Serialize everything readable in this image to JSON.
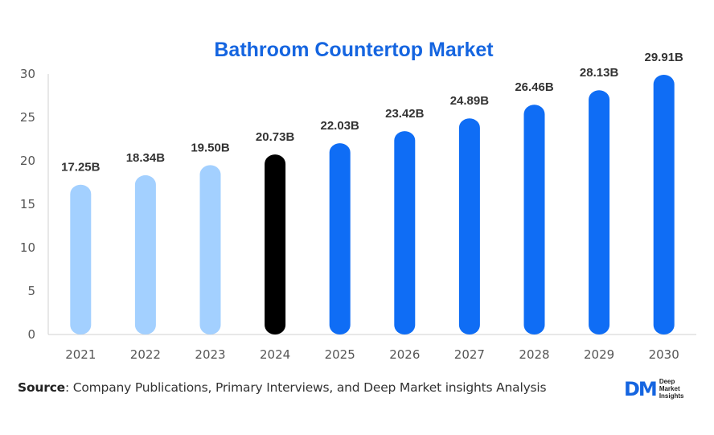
{
  "chart_data": {
    "type": "bar",
    "title": "Bathroom Countertop Market",
    "categories": [
      "2021",
      "2022",
      "2023",
      "2024",
      "2025",
      "2026",
      "2027",
      "2028",
      "2029",
      "2030"
    ],
    "values": [
      17.25,
      18.34,
      19.5,
      20.73,
      22.03,
      23.42,
      24.89,
      26.46,
      28.13,
      29.91
    ],
    "data_labels": [
      "17.25B",
      "18.34B",
      "19.50B",
      "20.73B",
      "22.03B",
      "23.42B",
      "24.89B",
      "26.46B",
      "28.13B",
      "29.91B"
    ],
    "xlabel": "",
    "ylabel": "",
    "ylim": [
      0,
      30
    ],
    "yticks": [
      "0",
      "5",
      "10",
      "15",
      "20",
      "25",
      "30"
    ],
    "grid": false,
    "bar_colors": [
      "#a3d0ff",
      "#a3d0ff",
      "#a3d0ff",
      "#000000",
      "#0f6df5",
      "#0f6df5",
      "#0f6df5",
      "#0f6df5",
      "#0f6df5",
      "#0f6df5"
    ],
    "title_color": "#1565e0"
  },
  "source": {
    "label": "Source",
    "text": ": Company Publications, Primary Interviews, and Deep Market insights Analysis"
  },
  "logo": {
    "mark": "DM",
    "lines": [
      "Deep",
      "Market",
      "Insights"
    ]
  }
}
